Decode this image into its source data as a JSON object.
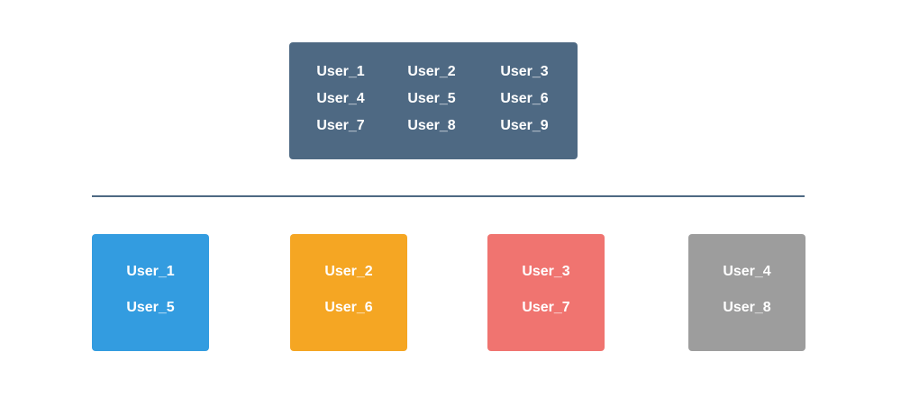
{
  "source_users": [
    "User_1",
    "User_2",
    "User_3",
    "User_4",
    "User_5",
    "User_6",
    "User_7",
    "User_8",
    "User_9"
  ],
  "buckets": [
    {
      "users": [
        "User_1",
        "User_5"
      ],
      "color": "#339ce0"
    },
    {
      "users": [
        "User_2",
        "User_6"
      ],
      "color": "#f5a623"
    },
    {
      "users": [
        "User_3",
        "User_7"
      ],
      "color": "#f07470"
    },
    {
      "users": [
        "User_4",
        "User_8"
      ],
      "color": "#9d9d9d"
    }
  ],
  "colors": {
    "source_box": "#4e6983",
    "divider": "#4e6983",
    "text": "#ffffff"
  }
}
